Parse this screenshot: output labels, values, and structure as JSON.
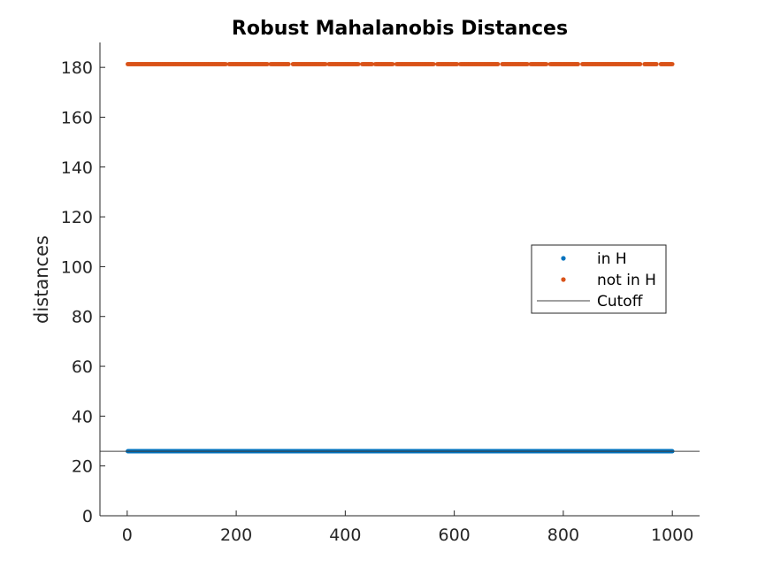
{
  "chart_data": {
    "type": "scatter",
    "title": "Robust Mahalanobis Distances",
    "xlabel": "",
    "ylabel": "distances",
    "xlim": [
      -50,
      1050
    ],
    "ylim": [
      0,
      190
    ],
    "x_ticks": [
      0,
      200,
      400,
      600,
      800,
      1000
    ],
    "y_ticks": [
      0,
      20,
      40,
      60,
      80,
      100,
      120,
      140,
      160,
      180
    ],
    "grid": false,
    "legend_position": "right",
    "series": [
      {
        "name": "in H",
        "kind": "points",
        "color": "#0072BD",
        "x_range": [
          1,
          1000
        ],
        "y_value": 25.9,
        "description_value": "approximately constant ~26 for all in-subset points"
      },
      {
        "name": "not in H",
        "kind": "points",
        "color": "#D95319",
        "x_range": [
          1,
          1000
        ],
        "y_value": 181.3,
        "gaps": [
          [
            182,
            185
          ],
          [
            258,
            262
          ],
          [
            297,
            302
          ],
          [
            365,
            368
          ],
          [
            425,
            430
          ],
          [
            450,
            454
          ],
          [
            488,
            493
          ],
          [
            563,
            568
          ],
          [
            606,
            610
          ],
          [
            682,
            686
          ],
          [
            735,
            739
          ],
          [
            770,
            775
          ],
          [
            828,
            833
          ],
          [
            943,
            947
          ],
          [
            973,
            978
          ]
        ]
      },
      {
        "name": "Cutoff",
        "kind": "line",
        "color": "#404040",
        "y_value": 25.9
      }
    ]
  }
}
